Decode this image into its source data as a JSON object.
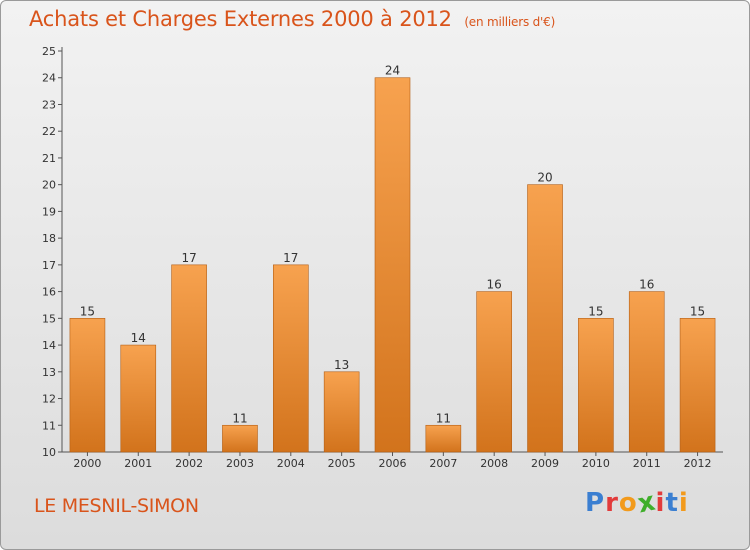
{
  "title": "Achats et Charges Externes 2000 à 2012",
  "subtitle": "(en milliers d'€)",
  "location": "LE MESNIL-SIMON",
  "logo": {
    "text": "Proxiti",
    "letter_colors": [
      "#3b7fd1",
      "#e23b3b",
      "#f29a1c",
      "#3fae2a",
      "#e23b3b",
      "#3b7fd1",
      "#f29a1c"
    ]
  },
  "colors": {
    "title": "#d9541b",
    "bar_top": "#f7a24f",
    "bar_bottom": "#d2731c",
    "bar_edge": "#b35e14",
    "axis": "#555555"
  },
  "chart_data": {
    "type": "bar",
    "title": "Achats et Charges Externes 2000 à 2012",
    "subtitle": "(en milliers d'€)",
    "xlabel": "",
    "ylabel": "",
    "categories": [
      "2000",
      "2001",
      "2002",
      "2003",
      "2004",
      "2005",
      "2006",
      "2007",
      "2008",
      "2009",
      "2010",
      "2011",
      "2012"
    ],
    "values": [
      15,
      14,
      17,
      11,
      17,
      13,
      24,
      11,
      16,
      20,
      15,
      16,
      15
    ],
    "data_labels": [
      "15",
      "14",
      "17",
      "11",
      "17",
      "13",
      "24",
      "11",
      "16",
      "20",
      "15",
      "16",
      "15"
    ],
    "ylim": [
      10,
      25
    ],
    "yticks": [
      10,
      11,
      12,
      13,
      14,
      15,
      16,
      17,
      18,
      19,
      20,
      21,
      22,
      23,
      24,
      25
    ],
    "grid": false,
    "legend": "none"
  }
}
